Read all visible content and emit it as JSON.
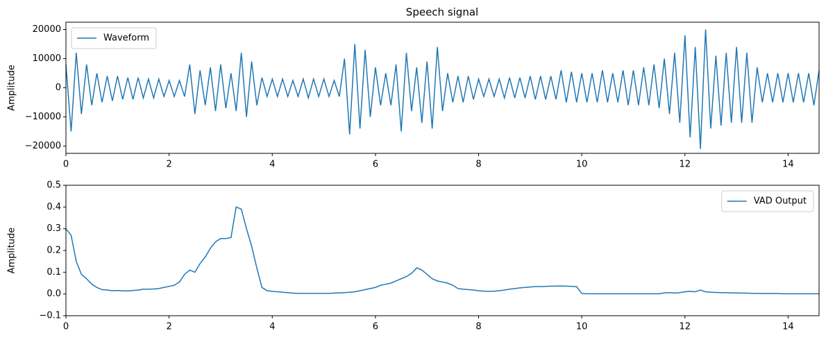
{
  "chart_data": [
    {
      "type": "line",
      "title": "Speech signal",
      "y_label": "Amplitude",
      "legend": "upper left",
      "xlim": [
        0,
        14.6
      ],
      "xticks": [
        0,
        2,
        4,
        6,
        8,
        10,
        12,
        14
      ],
      "ylim": [
        -22500,
        22500
      ],
      "yticks": [
        {
          "value": -20000,
          "label": "−20000"
        },
        {
          "value": -10000,
          "label": "−10000"
        },
        0,
        10000,
        20000
      ],
      "x": [
        0.0,
        0.1,
        0.2,
        0.3,
        0.4,
        0.5,
        0.6,
        0.7,
        0.8,
        0.9,
        1.0,
        1.1,
        1.2,
        1.3,
        1.4,
        1.5,
        1.6,
        1.7,
        1.8,
        1.9,
        2.0,
        2.1,
        2.2,
        2.3,
        2.4,
        2.5,
        2.6,
        2.7,
        2.8,
        2.9,
        3.0,
        3.1,
        3.2,
        3.3,
        3.4,
        3.5,
        3.6,
        3.7,
        3.8,
        3.9,
        4.0,
        4.1,
        4.2,
        4.3,
        4.4,
        4.5,
        4.6,
        4.7,
        4.8,
        4.9,
        5.0,
        5.1,
        5.2,
        5.3,
        5.4,
        5.5,
        5.6,
        5.7,
        5.8,
        5.9,
        6.0,
        6.1,
        6.2,
        6.3,
        6.4,
        6.5,
        6.6,
        6.7,
        6.8,
        6.9,
        7.0,
        7.1,
        7.2,
        7.3,
        7.4,
        7.5,
        7.6,
        7.7,
        7.8,
        7.9,
        8.0,
        8.1,
        8.2,
        8.3,
        8.4,
        8.5,
        8.6,
        8.7,
        8.8,
        8.9,
        9.0,
        9.1,
        9.2,
        9.3,
        9.4,
        9.5,
        9.6,
        9.7,
        9.8,
        9.9,
        10.0,
        10.1,
        10.2,
        10.3,
        10.4,
        10.5,
        10.6,
        10.7,
        10.8,
        10.9,
        11.0,
        11.1,
        11.2,
        11.3,
        11.4,
        11.5,
        11.6,
        11.7,
        11.8,
        11.9,
        12.0,
        12.1,
        12.2,
        12.3,
        12.4,
        12.5,
        12.6,
        12.7,
        12.8,
        12.9,
        13.0,
        13.1,
        13.2,
        13.3,
        13.4,
        13.5,
        13.6,
        13.7,
        13.8,
        13.9,
        14.0,
        14.1,
        14.2,
        14.3,
        14.4,
        14.5,
        14.6
      ],
      "series": [
        {
          "name": "Waveform",
          "color": "#1f77b4",
          "values": [
            8000,
            -15000,
            12000,
            -9000,
            8000,
            -6000,
            5000,
            -5000,
            4000,
            -4500,
            4000,
            -4000,
            3500,
            -4000,
            3500,
            -3500,
            3000,
            -3500,
            3000,
            -3000,
            2500,
            -3000,
            2500,
            -3000,
            8000,
            -9000,
            6000,
            -6000,
            7000,
            -8000,
            8000,
            -7000,
            5000,
            -8000,
            12000,
            -10000,
            9000,
            -6000,
            3500,
            -3000,
            3000,
            -3000,
            3000,
            -3000,
            2500,
            -3000,
            3000,
            -3500,
            3000,
            -3000,
            3000,
            -3000,
            2500,
            -3000,
            10000,
            -16000,
            15000,
            -14000,
            13000,
            -10000,
            7000,
            -6000,
            5000,
            -6000,
            8000,
            -15000,
            12000,
            -8000,
            7000,
            -12000,
            9000,
            -14000,
            14000,
            -8000,
            5000,
            -5000,
            4000,
            -5000,
            4000,
            -4000,
            3000,
            -3000,
            3000,
            -3000,
            3000,
            -3500,
            3500,
            -3500,
            3500,
            -3500,
            4000,
            -4000,
            4000,
            -4000,
            4000,
            -4000,
            6000,
            -5000,
            5500,
            -5000,
            5000,
            -5000,
            5000,
            -5000,
            6000,
            -5000,
            5000,
            -5000,
            6000,
            -6000,
            6000,
            -6000,
            7000,
            -6000,
            8000,
            -7000,
            10000,
            -9000,
            12000,
            -12000,
            18000,
            -17000,
            14000,
            -21000,
            20000,
            -14000,
            11000,
            -13000,
            12000,
            -12000,
            14000,
            -12000,
            12000,
            -12000,
            7000,
            -5000,
            5000,
            -5000,
            5000,
            -5000,
            5000,
            -5000,
            5000,
            -5000,
            5000,
            -6000,
            6000
          ]
        }
      ]
    },
    {
      "type": "line",
      "y_label": "Amplitude",
      "legend": "upper right",
      "xlim": [
        0,
        14.6
      ],
      "xticks": [
        0,
        2,
        4,
        6,
        8,
        10,
        12,
        14
      ],
      "ylim": [
        -0.1,
        0.5
      ],
      "yticks": [
        {
          "value": -0.1,
          "label": "−0.1"
        },
        {
          "value": 0,
          "label": "0.0"
        },
        0.1,
        0.2,
        0.3,
        0.4,
        0.5
      ],
      "x": [
        0.0,
        0.1,
        0.2,
        0.3,
        0.4,
        0.5,
        0.6,
        0.7,
        0.8,
        0.9,
        1.0,
        1.1,
        1.2,
        1.3,
        1.4,
        1.5,
        1.6,
        1.7,
        1.8,
        1.9,
        2.0,
        2.1,
        2.2,
        2.3,
        2.4,
        2.5,
        2.6,
        2.7,
        2.8,
        2.9,
        3.0,
        3.1,
        3.2,
        3.3,
        3.4,
        3.5,
        3.6,
        3.7,
        3.8,
        3.9,
        4.0,
        4.1,
        4.2,
        4.3,
        4.4,
        4.5,
        4.6,
        4.7,
        4.8,
        4.9,
        5.0,
        5.1,
        5.2,
        5.3,
        5.4,
        5.5,
        5.6,
        5.7,
        5.8,
        5.9,
        6.0,
        6.1,
        6.2,
        6.3,
        6.4,
        6.5,
        6.6,
        6.7,
        6.8,
        6.9,
        7.0,
        7.1,
        7.2,
        7.3,
        7.4,
        7.5,
        7.6,
        7.7,
        7.8,
        7.9,
        8.0,
        8.1,
        8.2,
        8.3,
        8.4,
        8.5,
        8.6,
        8.7,
        8.8,
        8.9,
        9.0,
        9.1,
        9.2,
        9.3,
        9.4,
        9.5,
        9.6,
        9.7,
        9.8,
        9.9,
        10.0,
        10.1,
        10.2,
        10.3,
        10.4,
        10.5,
        10.6,
        10.7,
        10.8,
        10.9,
        11.0,
        11.1,
        11.2,
        11.3,
        11.4,
        11.5,
        11.6,
        11.7,
        11.8,
        11.9,
        12.0,
        12.1,
        12.2,
        12.3,
        12.4,
        12.5,
        12.6,
        12.7,
        12.8,
        12.9,
        13.0,
        13.1,
        13.2,
        13.3,
        13.4,
        13.5,
        13.6,
        13.7,
        13.8,
        13.9,
        14.0,
        14.1,
        14.2,
        14.3,
        14.4,
        14.5,
        14.6
      ],
      "series": [
        {
          "name": "VAD Output",
          "color": "#1f77b4",
          "values": [
            0.3,
            0.27,
            0.15,
            0.09,
            0.07,
            0.045,
            0.03,
            0.02,
            0.018,
            0.015,
            0.016,
            0.014,
            0.014,
            0.016,
            0.018,
            0.022,
            0.022,
            0.023,
            0.025,
            0.03,
            0.035,
            0.04,
            0.055,
            0.09,
            0.11,
            0.1,
            0.14,
            0.17,
            0.21,
            0.24,
            0.255,
            0.255,
            0.26,
            0.4,
            0.39,
            0.3,
            0.22,
            0.12,
            0.03,
            0.015,
            0.012,
            0.01,
            0.008,
            0.006,
            0.004,
            0.003,
            0.003,
            0.003,
            0.003,
            0.003,
            0.003,
            0.003,
            0.004,
            0.005,
            0.006,
            0.008,
            0.01,
            0.015,
            0.02,
            0.025,
            0.03,
            0.04,
            0.045,
            0.05,
            0.06,
            0.07,
            0.08,
            0.095,
            0.12,
            0.11,
            0.09,
            0.07,
            0.06,
            0.055,
            0.05,
            0.04,
            0.025,
            0.022,
            0.02,
            0.018,
            0.015,
            0.013,
            0.012,
            0.013,
            0.015,
            0.018,
            0.022,
            0.025,
            0.028,
            0.03,
            0.032,
            0.034,
            0.034,
            0.035,
            0.036,
            0.036,
            0.037,
            0.036,
            0.035,
            0.034,
            0.002,
            0.001,
            0.001,
            0.001,
            0.001,
            0.001,
            0.001,
            0.001,
            0.001,
            0.001,
            0.001,
            0.001,
            0.001,
            0.001,
            0.001,
            0.001,
            0.005,
            0.006,
            0.004,
            0.006,
            0.01,
            0.012,
            0.01,
            0.018,
            0.01,
            0.008,
            0.007,
            0.006,
            0.006,
            0.005,
            0.005,
            0.004,
            0.004,
            0.003,
            0.003,
            0.002,
            0.002,
            0.002,
            0.002,
            0.001,
            0.001,
            0.001,
            0.001,
            0.001,
            0.001,
            0.001,
            0.001
          ]
        }
      ]
    }
  ]
}
